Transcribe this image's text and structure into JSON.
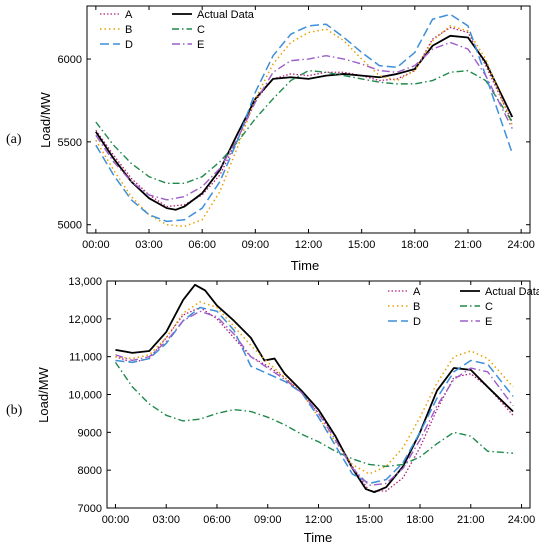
{
  "chart_data": [
    {
      "type": "line",
      "panel_label": "(a)",
      "xlabel": "Time",
      "ylabel": "Load/MW",
      "x_ticks": [
        "00:00",
        "03:00",
        "06:00",
        "09:00",
        "12:00",
        "15:00",
        "18:00",
        "21:00",
        "24:00"
      ],
      "y_ticks": [
        "5000",
        "5500",
        "6000"
      ],
      "y_tick_values": [
        5000,
        5500,
        6000
      ],
      "xlim": [
        -0.5,
        24.5
      ],
      "ylim": [
        4950,
        6320
      ],
      "legend_position": "top-left",
      "series": [
        {
          "name": "A",
          "color": "#b0207a",
          "dash": "1.5,2",
          "width": 1.3,
          "x": [
            0,
            1,
            2,
            3,
            4,
            5,
            6,
            7,
            8,
            9,
            10,
            11,
            12,
            13,
            14,
            15,
            16,
            17,
            18,
            19,
            20,
            21,
            22,
            23.5
          ],
          "y": [
            5570,
            5420,
            5280,
            5180,
            5110,
            5120,
            5180,
            5300,
            5520,
            5750,
            5880,
            5910,
            5900,
            5920,
            5920,
            5900,
            5870,
            5880,
            5930,
            6120,
            6190,
            6160,
            5960,
            5620
          ]
        },
        {
          "name": "Actual Data",
          "color": "#000000",
          "dash": "",
          "width": 1.8,
          "x": [
            0,
            1,
            2,
            3,
            4,
            4.5,
            5,
            6,
            7,
            8,
            9,
            10,
            11,
            12,
            13,
            14,
            15,
            16,
            17,
            18,
            19,
            20,
            21,
            22,
            23.5
          ],
          "y": [
            5560,
            5400,
            5260,
            5160,
            5100,
            5090,
            5110,
            5190,
            5330,
            5550,
            5760,
            5880,
            5890,
            5880,
            5900,
            5910,
            5900,
            5890,
            5910,
            5940,
            6080,
            6140,
            6130,
            5980,
            5650
          ]
        },
        {
          "name": "B",
          "color": "#e8a000",
          "dash": "1.5,3",
          "width": 1.5,
          "x": [
            0,
            1,
            2,
            3,
            4,
            5,
            6,
            7,
            8,
            9,
            10,
            11,
            12,
            13,
            14,
            15,
            16,
            17,
            18,
            19,
            20,
            21,
            22,
            23.5
          ],
          "y": [
            5510,
            5330,
            5170,
            5060,
            5000,
            4990,
            5030,
            5200,
            5470,
            5760,
            5970,
            6100,
            6160,
            6180,
            6110,
            6000,
            5900,
            5870,
            5930,
            6110,
            6200,
            6170,
            6000,
            5600
          ]
        },
        {
          "name": "C",
          "color": "#1f8a4c",
          "dash": "7,3,1.5,3",
          "width": 1.4,
          "x": [
            0,
            1,
            2,
            3,
            4,
            5,
            6,
            7,
            8,
            9,
            10,
            11,
            12,
            13,
            14,
            15,
            16,
            17,
            18,
            19,
            20,
            21,
            22,
            23.5
          ],
          "y": [
            5620,
            5480,
            5370,
            5290,
            5250,
            5250,
            5290,
            5380,
            5500,
            5640,
            5760,
            5870,
            5930,
            5920,
            5900,
            5880,
            5860,
            5850,
            5850,
            5870,
            5920,
            5930,
            5870,
            5620
          ]
        },
        {
          "name": "D",
          "color": "#3d8fd9",
          "dash": "9,4",
          "width": 1.5,
          "x": [
            0,
            1,
            2,
            3,
            4,
            5,
            6,
            7,
            8,
            9,
            10,
            11,
            12,
            13,
            14,
            15,
            16,
            17,
            18,
            19,
            20,
            21,
            22,
            23.5
          ],
          "y": [
            5480,
            5300,
            5150,
            5060,
            5020,
            5030,
            5100,
            5260,
            5510,
            5800,
            6020,
            6150,
            6200,
            6210,
            6130,
            6040,
            5960,
            5950,
            6040,
            6240,
            6270,
            6200,
            5900,
            5430
          ]
        },
        {
          "name": "E",
          "color": "#9b5fc8",
          "dash": "8,3,1.5,3",
          "width": 1.4,
          "x": [
            0,
            1,
            2,
            3,
            4,
            5,
            6,
            7,
            8,
            9,
            10,
            11,
            12,
            13,
            14,
            15,
            16,
            17,
            18,
            19,
            20,
            21,
            22,
            23.5
          ],
          "y": [
            5540,
            5380,
            5260,
            5180,
            5150,
            5170,
            5230,
            5340,
            5520,
            5740,
            5920,
            5990,
            6000,
            6020,
            6000,
            5970,
            5930,
            5920,
            5960,
            6060,
            6100,
            6060,
            5900,
            5580
          ]
        }
      ]
    },
    {
      "type": "line",
      "panel_label": "(b)",
      "xlabel": "Time",
      "ylabel": "Load/MW",
      "x_ticks": [
        "00:00",
        "03:00",
        "06:00",
        "09:00",
        "12:00",
        "15:00",
        "18:00",
        "21:00",
        "24:00"
      ],
      "y_ticks": [
        "7000",
        "8000",
        "9000",
        "10,000",
        "11,000",
        "12,000",
        "13,000"
      ],
      "y_tick_values": [
        7000,
        8000,
        9000,
        10000,
        11000,
        12000,
        13000
      ],
      "xlim": [
        -0.5,
        24.5
      ],
      "ylim": [
        7000,
        13000
      ],
      "legend_position": "top-right",
      "series": [
        {
          "name": "A",
          "color": "#b0207a",
          "dash": "1.5,2",
          "width": 1.3,
          "x": [
            0,
            1,
            2,
            3,
            4,
            5,
            6,
            7,
            8,
            9,
            10,
            11,
            12,
            13,
            14,
            15,
            16,
            17,
            18,
            19,
            20,
            21,
            22,
            23.5
          ],
          "y": [
            11000,
            10850,
            10950,
            11500,
            12100,
            12300,
            12000,
            11500,
            11000,
            10750,
            10450,
            10050,
            9500,
            8900,
            8100,
            7450,
            7450,
            7800,
            8600,
            9600,
            10450,
            10550,
            10200,
            9450
          ]
        },
        {
          "name": "Actual Data",
          "color": "#000000",
          "dash": "",
          "width": 1.8,
          "x": [
            0,
            1,
            2,
            3,
            4,
            4.7,
            5.3,
            6,
            7,
            8,
            8.8,
            9.4,
            10,
            11,
            12,
            13,
            14,
            14.8,
            15.3,
            16,
            17,
            18,
            19,
            20,
            21,
            22,
            23.5
          ],
          "y": [
            11180,
            11100,
            11150,
            11650,
            12500,
            12900,
            12750,
            12350,
            11950,
            11500,
            10900,
            10950,
            10550,
            10100,
            9600,
            8900,
            8050,
            7500,
            7420,
            7550,
            8100,
            9000,
            10100,
            10700,
            10650,
            10200,
            9550
          ]
        },
        {
          "name": "B",
          "color": "#e8a000",
          "dash": "1.5,3",
          "width": 1.5,
          "x": [
            0,
            1,
            2,
            3,
            4,
            5,
            6,
            7,
            8,
            9,
            10,
            11,
            12,
            13,
            14,
            15,
            16,
            17,
            18,
            19,
            20,
            21,
            22,
            23.5
          ],
          "y": [
            11000,
            10950,
            11050,
            11500,
            12150,
            12450,
            12300,
            11800,
            11300,
            10850,
            10450,
            10050,
            9400,
            8750,
            8150,
            7900,
            8100,
            8600,
            9400,
            10300,
            11000,
            11150,
            10950,
            10200
          ]
        },
        {
          "name": "C",
          "color": "#1f8a4c",
          "dash": "7,3,1.5,3",
          "width": 1.4,
          "x": [
            0,
            1,
            2,
            3,
            4,
            5,
            6,
            7,
            8,
            9,
            10,
            11,
            12,
            13,
            14,
            15,
            16,
            17,
            18,
            19,
            20,
            21,
            22,
            23.5
          ],
          "y": [
            10850,
            10200,
            9750,
            9450,
            9300,
            9350,
            9500,
            9600,
            9550,
            9400,
            9200,
            8950,
            8750,
            8500,
            8300,
            8150,
            8100,
            8150,
            8350,
            8700,
            9000,
            8900,
            8500,
            8450
          ]
        },
        {
          "name": "D",
          "color": "#3d8fd9",
          "dash": "9,4",
          "width": 1.5,
          "x": [
            0,
            1,
            2,
            3,
            4,
            5,
            6,
            7,
            8,
            9,
            10,
            11,
            12,
            13,
            14,
            15,
            16,
            17,
            18,
            19,
            20,
            21,
            22,
            23.5
          ],
          "y": [
            10900,
            10850,
            10950,
            11350,
            11950,
            12300,
            12200,
            11700,
            10750,
            10550,
            10350,
            10050,
            9400,
            8650,
            7900,
            7650,
            7750,
            8200,
            9000,
            9900,
            10600,
            10900,
            10800,
            9950
          ]
        },
        {
          "name": "E",
          "color": "#9b5fc8",
          "dash": "8,3,1.5,3",
          "width": 1.4,
          "x": [
            0,
            1,
            2,
            3,
            4,
            5,
            6,
            7,
            8,
            9,
            10,
            11,
            12,
            13,
            14,
            15,
            16,
            17,
            18,
            19,
            20,
            21,
            22,
            23.5
          ],
          "y": [
            11050,
            10900,
            11000,
            11400,
            11950,
            12200,
            12050,
            11600,
            11000,
            10700,
            10400,
            10050,
            9500,
            8800,
            8050,
            7600,
            7650,
            8050,
            8800,
            9700,
            10400,
            10700,
            10600,
            9700
          ]
        }
      ]
    }
  ]
}
